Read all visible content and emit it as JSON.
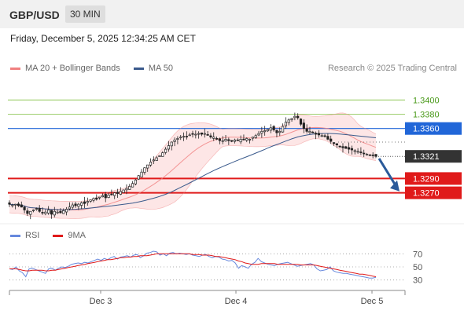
{
  "header": {
    "symbol": "GBP/USD",
    "timeframe": "30 MIN"
  },
  "timestamp": "Friday, December 5, 2025 12:34:25 AM CET",
  "credit": "Research © 2025 Trading Central",
  "colors": {
    "resistance": "#2166d8",
    "support": "#e01a1a",
    "target": "#7fbf3f",
    "bollinger": "#f08080",
    "band_fill": "#fde3e3",
    "ma50": "#3a5a8c",
    "last_price": "#333333",
    "arrow": "#2a5a9a",
    "rsi": "#6688dd",
    "rsi_ma": "#e01a1a"
  },
  "chart_data": [
    {
      "type": "candlestick",
      "legend": [
        "MA 20 + Bollinger Bands",
        "MA 50"
      ],
      "legend_placement": "top-left",
      "ylim": [
        1.323,
        1.343
      ],
      "x_ticks": [
        "Dec 3",
        "Dec 4",
        "Dec 5"
      ],
      "last_price": 1.3321,
      "levels": [
        {
          "label": "1.3400",
          "value": 1.34,
          "kind": "target"
        },
        {
          "label": "1.3380",
          "value": 1.338,
          "kind": "target"
        },
        {
          "label": "1.3360",
          "value": 1.336,
          "kind": "resistance"
        },
        {
          "label": "1.3290",
          "value": 1.329,
          "kind": "support"
        },
        {
          "label": "1.3270",
          "value": 1.327,
          "kind": "support"
        }
      ],
      "closes": [
        1.3254,
        1.3253,
        1.3254,
        1.3252,
        1.325,
        1.3246,
        1.3241,
        1.3244,
        1.3246,
        1.3248,
        1.3244,
        1.3242,
        1.3243,
        1.3246,
        1.324,
        1.3244,
        1.3243,
        1.3242,
        1.3245,
        1.3247,
        1.325,
        1.3253,
        1.3252,
        1.3254,
        1.3256,
        1.3255,
        1.3258,
        1.326,
        1.3262,
        1.3261,
        1.3264,
        1.3266,
        1.3263,
        1.3267,
        1.3268,
        1.327,
        1.3269,
        1.3272,
        1.3274,
        1.3276,
        1.3279,
        1.3283,
        1.3288,
        1.3294,
        1.3299,
        1.3305,
        1.3309,
        1.3313,
        1.3316,
        1.3319,
        1.3322,
        1.3326,
        1.3331,
        1.3336,
        1.3341,
        1.3344,
        1.3346,
        1.3348,
        1.3349,
        1.3349,
        1.3351,
        1.3352,
        1.3352,
        1.3353,
        1.3352,
        1.3353,
        1.3351,
        1.3348,
        1.3348,
        1.3345,
        1.3343,
        1.3343,
        1.3345,
        1.3343,
        1.3342,
        1.3344,
        1.3343,
        1.3345,
        1.3344,
        1.3346,
        1.3345,
        1.3348,
        1.335,
        1.3353,
        1.3356,
        1.3357,
        1.3359,
        1.3361,
        1.3358,
        1.3354,
        1.3356,
        1.3363,
        1.3369,
        1.3372,
        1.3374,
        1.3377,
        1.3375,
        1.3366,
        1.336,
        1.3356,
        1.3356,
        1.3354,
        1.3352,
        1.3351,
        1.335,
        1.3349,
        1.3345,
        1.3342,
        1.3339,
        1.3337,
        1.3335,
        1.3333,
        1.3332,
        1.3331,
        1.333,
        1.3329,
        1.3328,
        1.3327,
        1.3325,
        1.3324,
        1.3323,
        1.3322,
        1.3321
      ]
    },
    {
      "type": "line",
      "legend": [
        "RSI",
        "9MA"
      ],
      "legend_placement": "top-left",
      "ylim": [
        20,
        80
      ],
      "y_ticks": [
        70,
        50,
        30
      ],
      "rsi": [
        47,
        46,
        50,
        44,
        41,
        35,
        47,
        48,
        46,
        44,
        42,
        40,
        47,
        48,
        45,
        48,
        50,
        49,
        51,
        54,
        55,
        56,
        55,
        57,
        56,
        58,
        60,
        62,
        60,
        63,
        61,
        64,
        66,
        62,
        65,
        66,
        67,
        65,
        68,
        69,
        64,
        67,
        71,
        72,
        74,
        73,
        68,
        70,
        67,
        71,
        72,
        70,
        71,
        70,
        69,
        70,
        68,
        67,
        66,
        68,
        69,
        66,
        64,
        66,
        65,
        62,
        61,
        59,
        60,
        56,
        48,
        52,
        50,
        48,
        54,
        57,
        63,
        58,
        56,
        54,
        53,
        52,
        54,
        55,
        56,
        57,
        55,
        53,
        51,
        52,
        53,
        54,
        55,
        53,
        47,
        44,
        45,
        46,
        50,
        44,
        42,
        41,
        40,
        40,
        39,
        38,
        37,
        36,
        35,
        34,
        33,
        33,
        34
      ],
      "ma9": [
        47,
        47,
        47,
        46,
        45,
        44,
        44,
        45,
        45,
        45,
        45,
        44,
        44,
        45,
        45,
        46,
        47,
        48,
        49,
        50,
        51,
        52,
        53,
        54,
        55,
        56,
        57,
        58,
        59,
        60,
        61,
        61,
        62,
        63,
        64,
        64,
        65,
        65,
        66,
        66,
        67,
        67,
        67,
        68,
        69,
        70,
        70,
        70,
        70,
        70,
        70,
        70,
        70,
        70,
        70,
        70,
        69,
        69,
        69,
        68,
        68,
        68,
        67,
        66,
        66,
        65,
        64,
        63,
        62,
        61,
        59,
        58,
        56,
        55,
        54,
        54,
        54,
        55,
        55,
        55,
        55,
        55,
        54,
        54,
        54,
        54,
        54,
        54,
        54,
        53,
        53,
        53,
        53,
        53,
        52,
        51,
        50,
        49,
        48,
        47,
        46,
        45,
        44,
        43,
        42,
        41,
        40,
        39,
        39,
        38,
        37,
        36,
        35
      ]
    }
  ]
}
